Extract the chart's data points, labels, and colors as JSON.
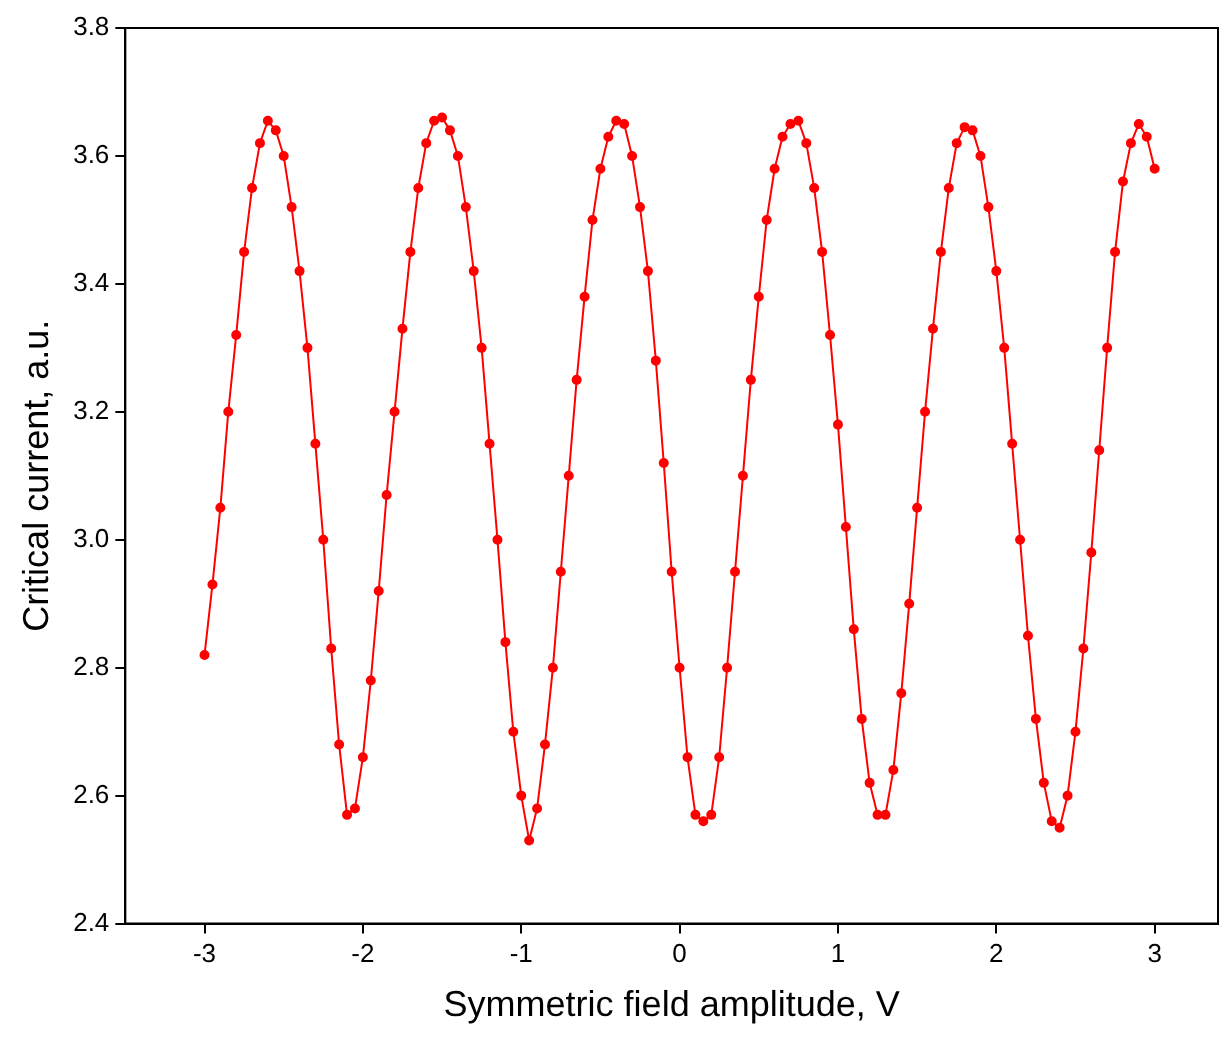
{
  "chart_data": {
    "type": "line",
    "xlabel": "Symmetric field amplitude, V",
    "ylabel": "Critical current, a.u.",
    "xlim": [
      -3.5,
      3.4
    ],
    "xticks": [
      -3,
      -2,
      -1,
      0,
      1,
      2,
      3
    ],
    "ylim": [
      2.4,
      3.8
    ],
    "yticks": [
      2.4,
      2.6,
      2.8,
      {
        "value": 3,
        "label": "3.0"
      },
      3.2,
      3.4,
      3.6,
      3.8
    ],
    "grid": false,
    "legend": false,
    "marker": "circle",
    "line_style": "solid",
    "series": [
      {
        "color": "#ff0000",
        "x": [
          -3,
          -2.95,
          -2.9,
          -2.85,
          -2.8,
          -2.75,
          -2.7,
          -2.65,
          -2.6,
          -2.55,
          -2.5,
          -2.45,
          -2.4,
          -2.35,
          -2.3,
          -2.25,
          -2.2,
          -2.15,
          -2.1,
          -2.05,
          -2,
          -1.95,
          -1.9,
          -1.85,
          -1.8,
          -1.75,
          -1.7,
          -1.65,
          -1.6,
          -1.55,
          -1.5,
          -1.45,
          -1.4,
          -1.35,
          -1.3,
          -1.25,
          -1.2,
          -1.15,
          -1.1,
          -1.05,
          -1,
          -0.95,
          -0.9,
          -0.85,
          -0.8,
          -0.75,
          -0.7,
          -0.65,
          -0.6,
          -0.55,
          -0.5,
          -0.45,
          -0.4,
          -0.35,
          -0.3,
          -0.25,
          -0.2,
          -0.15,
          -0.1,
          -0.05,
          0,
          0.05,
          0.1,
          0.15,
          0.2,
          0.25,
          0.3,
          0.35,
          0.4,
          0.45,
          0.5,
          0.55,
          0.6,
          0.65,
          0.7,
          0.75,
          0.8,
          0.85,
          0.9,
          0.95,
          1,
          1.05,
          1.1,
          1.15,
          1.2,
          1.25,
          1.3,
          1.35,
          1.4,
          1.45,
          1.5,
          1.55,
          1.6,
          1.65,
          1.7,
          1.75,
          1.8,
          1.85,
          1.9,
          1.95,
          2,
          2.05,
          2.1,
          2.15,
          2.2,
          2.25,
          2.3,
          2.35,
          2.4,
          2.45,
          2.5,
          2.55,
          2.6,
          2.65,
          2.7,
          2.75,
          2.8,
          2.85,
          2.9,
          2.95,
          3
        ],
        "values": [
          2.82,
          2.93,
          3.05,
          3.2,
          3.32,
          3.45,
          3.55,
          3.62,
          3.655,
          3.64,
          3.6,
          3.52,
          3.42,
          3.3,
          3.15,
          3.0,
          2.83,
          2.68,
          2.57,
          2.58,
          2.66,
          2.78,
          2.92,
          3.07,
          3.2,
          3.33,
          3.45,
          3.55,
          3.62,
          3.655,
          3.66,
          3.64,
          3.6,
          3.52,
          3.42,
          3.3,
          3.15,
          3.0,
          2.84,
          2.7,
          2.6,
          2.53,
          2.58,
          2.68,
          2.8,
          2.95,
          3.1,
          3.25,
          3.38,
          3.5,
          3.58,
          3.63,
          3.655,
          3.65,
          3.6,
          3.52,
          3.42,
          3.28,
          3.12,
          2.95,
          2.8,
          2.66,
          2.57,
          2.56,
          2.57,
          2.66,
          2.8,
          2.95,
          3.1,
          3.25,
          3.38,
          3.5,
          3.58,
          3.63,
          3.65,
          3.655,
          3.62,
          3.55,
          3.45,
          3.32,
          3.18,
          3.02,
          2.86,
          2.72,
          2.62,
          2.57,
          2.57,
          2.64,
          2.76,
          2.9,
          3.05,
          3.2,
          3.33,
          3.45,
          3.55,
          3.62,
          3.645,
          3.64,
          3.6,
          3.52,
          3.42,
          3.3,
          3.15,
          3.0,
          2.85,
          2.72,
          2.62,
          2.56,
          2.55,
          2.6,
          2.7,
          2.83,
          2.98,
          3.14,
          3.3,
          3.45,
          3.56,
          3.62,
          3.65,
          3.63,
          3.58
        ]
      }
    ]
  }
}
